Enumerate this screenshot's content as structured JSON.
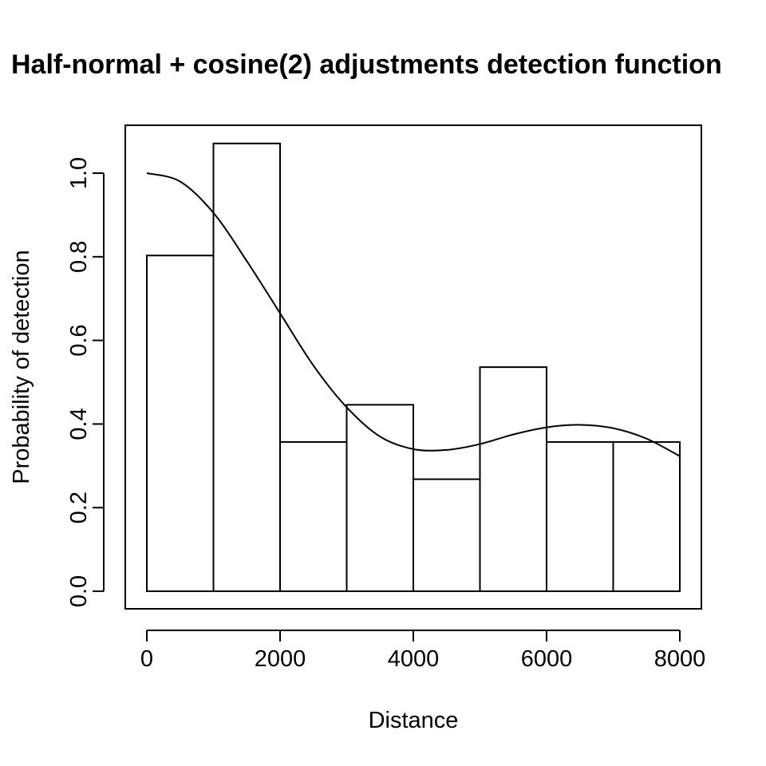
{
  "chart_data": {
    "type": "bar",
    "title": "Half-normal + cosine(2) adjustments detection function",
    "xlabel": "Distance",
    "ylabel": "Probability of detection",
    "xlim": [
      0,
      8000
    ],
    "ylim": [
      0,
      1.0
    ],
    "xticks": [
      "0",
      "2000",
      "4000",
      "6000",
      "8000"
    ],
    "yticks": [
      "0.0",
      "0.2",
      "0.4",
      "0.6",
      "0.8",
      "1.0"
    ],
    "grid": false,
    "bins": [
      {
        "from": 0,
        "to": 1000,
        "value": 0.803
      },
      {
        "from": 1000,
        "to": 2000,
        "value": 1.071
      },
      {
        "from": 2000,
        "to": 3000,
        "value": 0.357
      },
      {
        "from": 3000,
        "to": 4000,
        "value": 0.446
      },
      {
        "from": 4000,
        "to": 5000,
        "value": 0.268
      },
      {
        "from": 5000,
        "to": 6000,
        "value": 0.536
      },
      {
        "from": 6000,
        "to": 7000,
        "value": 0.357
      },
      {
        "from": 7000,
        "to": 8000,
        "value": 0.357
      }
    ],
    "curve": {
      "x": [
        0,
        500,
        1000,
        1500,
        2000,
        2500,
        3000,
        3500,
        4000,
        4500,
        5000,
        5500,
        6000,
        6500,
        7000,
        7500,
        8000
      ],
      "y": [
        1.0,
        0.98,
        0.905,
        0.79,
        0.665,
        0.54,
        0.44,
        0.37,
        0.34,
        0.338,
        0.352,
        0.375,
        0.392,
        0.398,
        0.39,
        0.365,
        0.323
      ]
    }
  }
}
